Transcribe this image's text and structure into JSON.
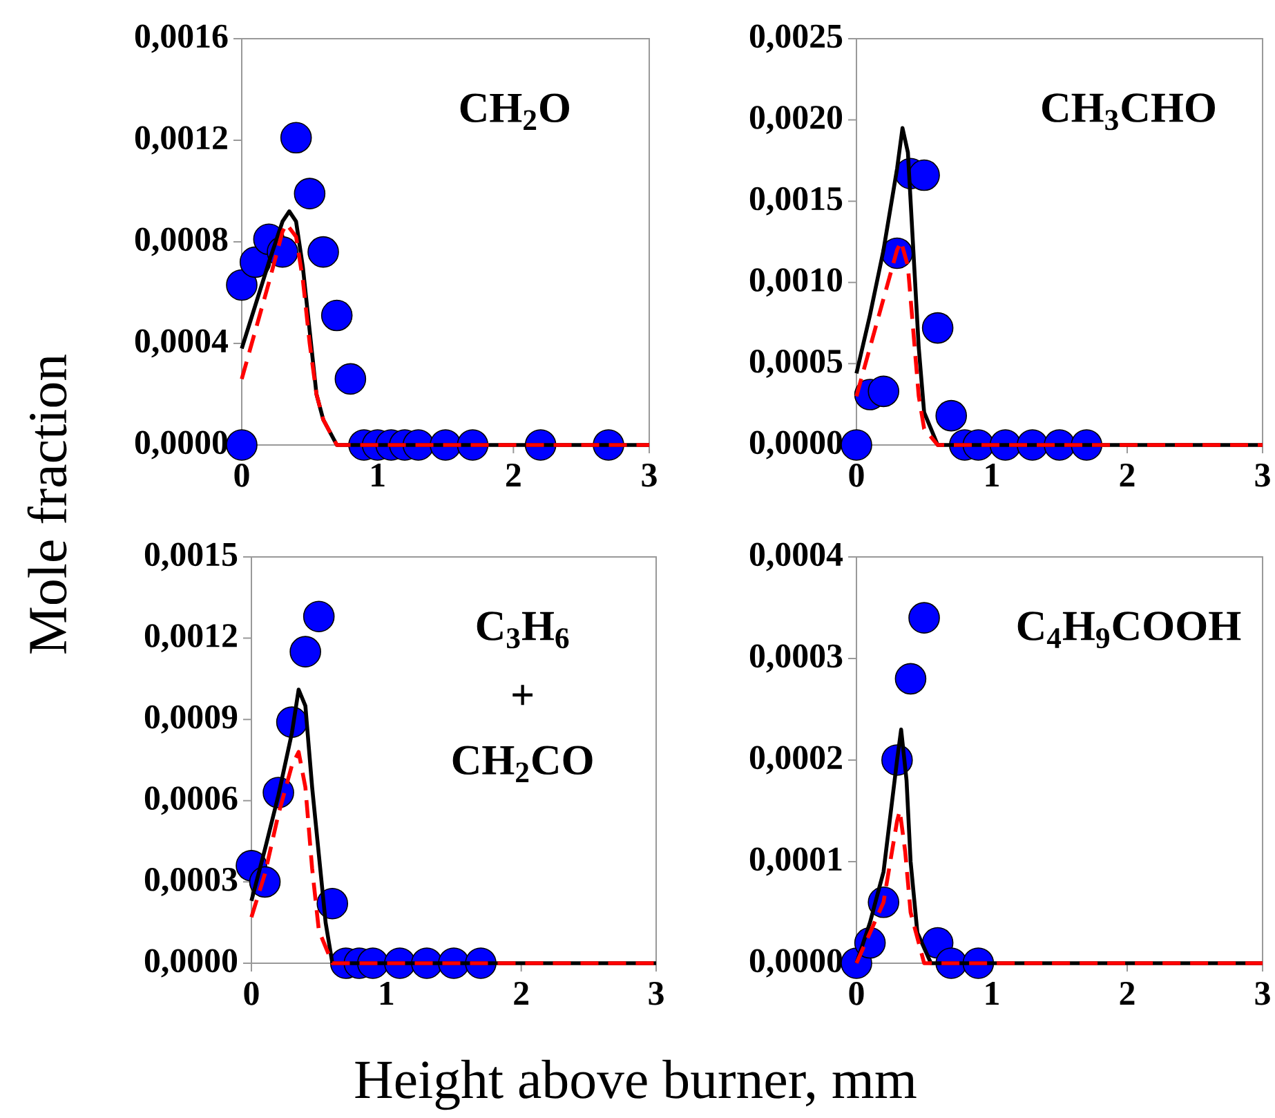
{
  "chart_data": [
    {
      "type": "scatter",
      "ylabel": "Mole fraction",
      "annotations": [
        "CH$_{2}$O"
      ],
      "xlim": [
        0,
        3
      ],
      "xticks": [
        0,
        1,
        2,
        3
      ],
      "ylim": [
        0,
        0.0016
      ],
      "yticks": [
        {
          "value": 0,
          "label": "0,0000"
        },
        {
          "value": 0.0004,
          "label": "0,0004"
        },
        {
          "value": 0.0008,
          "label": "0,0008"
        },
        {
          "value": 0.0012,
          "label": "0,0012"
        },
        {
          "value": 0.0016,
          "label": "0,0016"
        }
      ],
      "grid": false,
      "series": [
        {
          "marker": "circle",
          "color": "#0000ff",
          "x": [
            0,
            0,
            0.1,
            0.2,
            0.3,
            0.4,
            0.5,
            0.6,
            0.7,
            0.8,
            0.9,
            1.0,
            1.1,
            1.2,
            1.3,
            1.5,
            1.7,
            2.2,
            2.7
          ],
          "values": [
            0,
            0.00063,
            0.00072,
            0.00081,
            0.00076,
            0.00121,
            0.00099,
            0.00076,
            0.00051,
            0.00026,
            0,
            0,
            0,
            0,
            0,
            0,
            0,
            0,
            0
          ]
        },
        {
          "type": "line",
          "line_style": "solid",
          "color": "#000000",
          "x": [
            0,
            0.1,
            0.2,
            0.3,
            0.35,
            0.4,
            0.45,
            0.5,
            0.55,
            0.6,
            0.7,
            3
          ],
          "values": [
            0.00038,
            0.00055,
            0.00072,
            0.00088,
            0.00092,
            0.00088,
            0.0007,
            0.00045,
            0.0002,
            0.0001,
            0,
            0
          ]
        },
        {
          "type": "line",
          "line_style": "dashed",
          "color": "#ff0000",
          "x": [
            0,
            0.1,
            0.2,
            0.3,
            0.33,
            0.4,
            0.45,
            0.5,
            0.55,
            0.6,
            0.7,
            3
          ],
          "values": [
            0.00026,
            0.00045,
            0.00064,
            0.00084,
            0.00087,
            0.00082,
            0.00065,
            0.0004,
            0.0002,
            0.0001,
            0,
            0
          ]
        }
      ]
    },
    {
      "type": "scatter",
      "annotations": [
        "CH$_{3}$CHO"
      ],
      "xlim": [
        0,
        3
      ],
      "xticks": [
        0,
        1,
        2,
        3
      ],
      "ylim": [
        0,
        0.0025
      ],
      "yticks": [
        {
          "value": 0,
          "label": "0,0000"
        },
        {
          "value": 0.0005,
          "label": "0,0005"
        },
        {
          "value": 0.001,
          "label": "0,0010"
        },
        {
          "value": 0.0015,
          "label": "0,0015"
        },
        {
          "value": 0.002,
          "label": "0,0020"
        },
        {
          "value": 0.0025,
          "label": "0,0025"
        }
      ],
      "grid": false,
      "series": [
        {
          "marker": "circle",
          "color": "#0000ff",
          "x": [
            0,
            0.1,
            0.2,
            0.3,
            0.4,
            0.5,
            0.6,
            0.7,
            0.8,
            0.9,
            1.1,
            1.3,
            1.5,
            1.7
          ],
          "values": [
            0,
            0.00031,
            0.00033,
            0.00118,
            0.00167,
            0.00166,
            0.00072,
            0.00018,
            0,
            0,
            0,
            0,
            0,
            0
          ]
        },
        {
          "type": "line",
          "line_style": "solid",
          "color": "#000000",
          "x": [
            0,
            0.1,
            0.2,
            0.3,
            0.34,
            0.38,
            0.42,
            0.46,
            0.5,
            0.6,
            3
          ],
          "values": [
            0.00044,
            0.0008,
            0.0012,
            0.0017,
            0.00195,
            0.0018,
            0.0012,
            0.0006,
            0.0002,
            0,
            0
          ]
        },
        {
          "type": "line",
          "line_style": "dashed",
          "color": "#ff0000",
          "x": [
            0,
            0.1,
            0.2,
            0.3,
            0.33,
            0.38,
            0.42,
            0.46,
            0.5,
            0.6,
            3
          ],
          "values": [
            0.0003,
            0.0006,
            0.0009,
            0.0012,
            0.00125,
            0.0011,
            0.0007,
            0.0003,
            0.0001,
            0,
            0
          ]
        }
      ]
    },
    {
      "type": "scatter",
      "xlabel": "Height above burner, mm",
      "annotations": [
        "C$_{3}$H$_{6}$",
        "+",
        "CH$_{2}$CO"
      ],
      "xlim": [
        0,
        3
      ],
      "xticks": [
        0,
        1,
        2,
        3
      ],
      "ylim": [
        0,
        0.0015
      ],
      "yticks": [
        {
          "value": 0,
          "label": "0,0000"
        },
        {
          "value": 0.0003,
          "label": "0,0003"
        },
        {
          "value": 0.0006,
          "label": "0,0006"
        },
        {
          "value": 0.0009,
          "label": "0,0009"
        },
        {
          "value": 0.0012,
          "label": "0,0012"
        },
        {
          "value": 0.0015,
          "label": "0,0015"
        }
      ],
      "grid": false,
      "series": [
        {
          "marker": "circle",
          "color": "#0000ff",
          "x": [
            0,
            0.1,
            0.2,
            0.3,
            0.4,
            0.5,
            0.6,
            0.7,
            0.8,
            0.9,
            1.1,
            1.3,
            1.5,
            1.7
          ],
          "values": [
            0.00036,
            0.0003,
            0.00063,
            0.00089,
            0.00115,
            0.00128,
            0.00022,
            0,
            0,
            0,
            0,
            0,
            0,
            0
          ]
        },
        {
          "type": "line",
          "line_style": "solid",
          "color": "#000000",
          "x": [
            0,
            0.1,
            0.2,
            0.3,
            0.35,
            0.4,
            0.45,
            0.5,
            0.55,
            0.6,
            3
          ],
          "values": [
            0.00023,
            0.00042,
            0.00062,
            0.00085,
            0.00101,
            0.00095,
            0.00065,
            0.0004,
            0.00015,
            0,
            0
          ]
        },
        {
          "type": "line",
          "line_style": "dashed",
          "color": "#ff0000",
          "x": [
            0,
            0.1,
            0.2,
            0.3,
            0.35,
            0.4,
            0.45,
            0.5,
            0.6,
            3
          ],
          "values": [
            0.00017,
            0.00033,
            0.00055,
            0.00073,
            0.00078,
            0.00065,
            0.00035,
            0.00012,
            0,
            0
          ]
        }
      ]
    },
    {
      "type": "scatter",
      "annotations": [
        "C$_{4}$H$_{9}$COOH"
      ],
      "xlim": [
        0,
        3
      ],
      "xticks": [
        0,
        1,
        2,
        3
      ],
      "ylim": [
        0,
        0.0004
      ],
      "yticks": [
        {
          "value": 0,
          "label": "0,0000"
        },
        {
          "value": 0.0001,
          "label": "0,0001"
        },
        {
          "value": 0.0002,
          "label": "0,0002"
        },
        {
          "value": 0.0003,
          "label": "0,0003"
        },
        {
          "value": 0.0004,
          "label": "0,0004"
        }
      ],
      "grid": false,
      "series": [
        {
          "marker": "circle",
          "color": "#0000ff",
          "x": [
            0,
            0.1,
            0.2,
            0.3,
            0.4,
            0.5,
            0.6,
            0.7,
            0.9
          ],
          "values": [
            0,
            2e-05,
            6e-05,
            0.0002,
            0.00028,
            0.00034,
            2e-05,
            0,
            0
          ]
        },
        {
          "type": "line",
          "line_style": "solid",
          "color": "#000000",
          "x": [
            0,
            0.1,
            0.2,
            0.3,
            0.33,
            0.37,
            0.4,
            0.45,
            0.55,
            3
          ],
          "values": [
            0,
            4e-05,
            9e-05,
            0.0002,
            0.00023,
            0.00018,
            0.0001,
            3e-05,
            0,
            0
          ]
        },
        {
          "type": "line",
          "line_style": "dashed",
          "color": "#ff0000",
          "x": [
            0,
            0.1,
            0.2,
            0.3,
            0.32,
            0.36,
            0.4,
            0.5,
            3
          ],
          "values": [
            0,
            3e-05,
            6e-05,
            0.00014,
            0.00015,
            0.00011,
            5e-05,
            0,
            0
          ]
        }
      ]
    }
  ]
}
